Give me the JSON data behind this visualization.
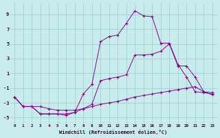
{
  "xlabel": "Windchill (Refroidissement éolien,°C)",
  "bg_color": "#c8ecec",
  "line_color": "#880088",
  "grid_color": "#99cccc",
  "xlim": [
    -0.5,
    23.5
  ],
  "ylim": [
    -5.8,
    10.5
  ],
  "yticks": [
    -5,
    -3,
    -1,
    1,
    3,
    5,
    7,
    9
  ],
  "xticks": [
    0,
    1,
    2,
    3,
    4,
    5,
    6,
    7,
    8,
    9,
    10,
    11,
    12,
    13,
    14,
    15,
    16,
    17,
    18,
    19,
    20,
    21,
    22,
    23
  ],
  "line_top_x": [
    0,
    1,
    2,
    3,
    4,
    5,
    6,
    7,
    8,
    9,
    10,
    11,
    12,
    13,
    14,
    15,
    16,
    17,
    18,
    19,
    20,
    21,
    22,
    23
  ],
  "line_top_y": [
    -2.2,
    -3.5,
    -3.5,
    -4.5,
    -4.5,
    -4.5,
    -4.7,
    -4.3,
    -1.8,
    -0.5,
    5.3,
    6.0,
    6.2,
    7.8,
    9.5,
    8.8,
    8.7,
    5.1,
    5.1,
    2.2,
    0.5,
    -1.5,
    -1.6,
    -1.8
  ],
  "line_mid_x": [
    0,
    1,
    2,
    3,
    4,
    5,
    6,
    7,
    8,
    9,
    10,
    11,
    12,
    13,
    14,
    15,
    16,
    17,
    18,
    19,
    20,
    21,
    22,
    23
  ],
  "line_mid_y": [
    -2.2,
    -3.5,
    -3.5,
    -4.5,
    -4.5,
    -4.5,
    -4.5,
    -4.3,
    -3.8,
    -3.2,
    0.0,
    0.3,
    0.5,
    0.8,
    3.5,
    3.5,
    3.6,
    4.0,
    5.0,
    2.0,
    2.0,
    0.5,
    -1.5,
    -1.9
  ],
  "line_bot_x": [
    0,
    1,
    2,
    3,
    4,
    5,
    6,
    7,
    8,
    9,
    10,
    11,
    12,
    13,
    14,
    15,
    16,
    17,
    18,
    19,
    20,
    21,
    22,
    23
  ],
  "line_bot_y": [
    -2.2,
    -3.5,
    -3.5,
    -3.5,
    -3.8,
    -4.0,
    -4.0,
    -4.0,
    -3.8,
    -3.5,
    -3.2,
    -3.0,
    -2.8,
    -2.5,
    -2.2,
    -2.0,
    -1.8,
    -1.6,
    -1.4,
    -1.2,
    -1.0,
    -0.8,
    -1.5,
    -1.6
  ]
}
